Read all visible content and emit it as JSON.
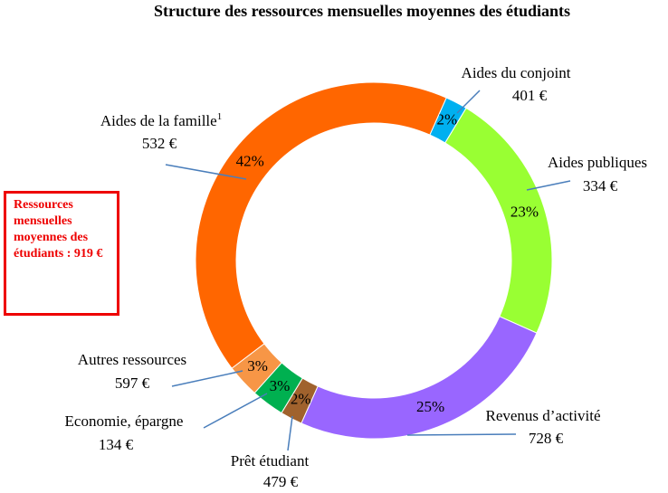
{
  "chart_data": {
    "type": "donut",
    "title": "Structure des ressources mensuelles moyennes des  étudiants",
    "categories": [
      "Aides du conjoint",
      "Aides publiques",
      "Revenus d’activité",
      "Prêt étudiant",
      "Economie, épargne",
      "Autres ressources",
      "Aides de la famille"
    ],
    "category_notes": [
      null,
      null,
      null,
      null,
      null,
      null,
      "1"
    ],
    "values": [
      2,
      23,
      25,
      2,
      3,
      3,
      42
    ],
    "value_labels": [
      "2%",
      "23%",
      "25%",
      "2%",
      "3%",
      "3%",
      "42%"
    ],
    "amounts": [
      "401 €",
      "334 €",
      "728 €",
      "479 €",
      "134 €",
      "597 €",
      "532 €"
    ],
    "colors": [
      "#00b0f0",
      "#99ff33",
      "#9966ff",
      "#a0622d",
      "#00b050",
      "#f79646",
      "#ff6600"
    ],
    "annotation": "Ressources mensuelles moyennes des étudiants : 919 €"
  }
}
